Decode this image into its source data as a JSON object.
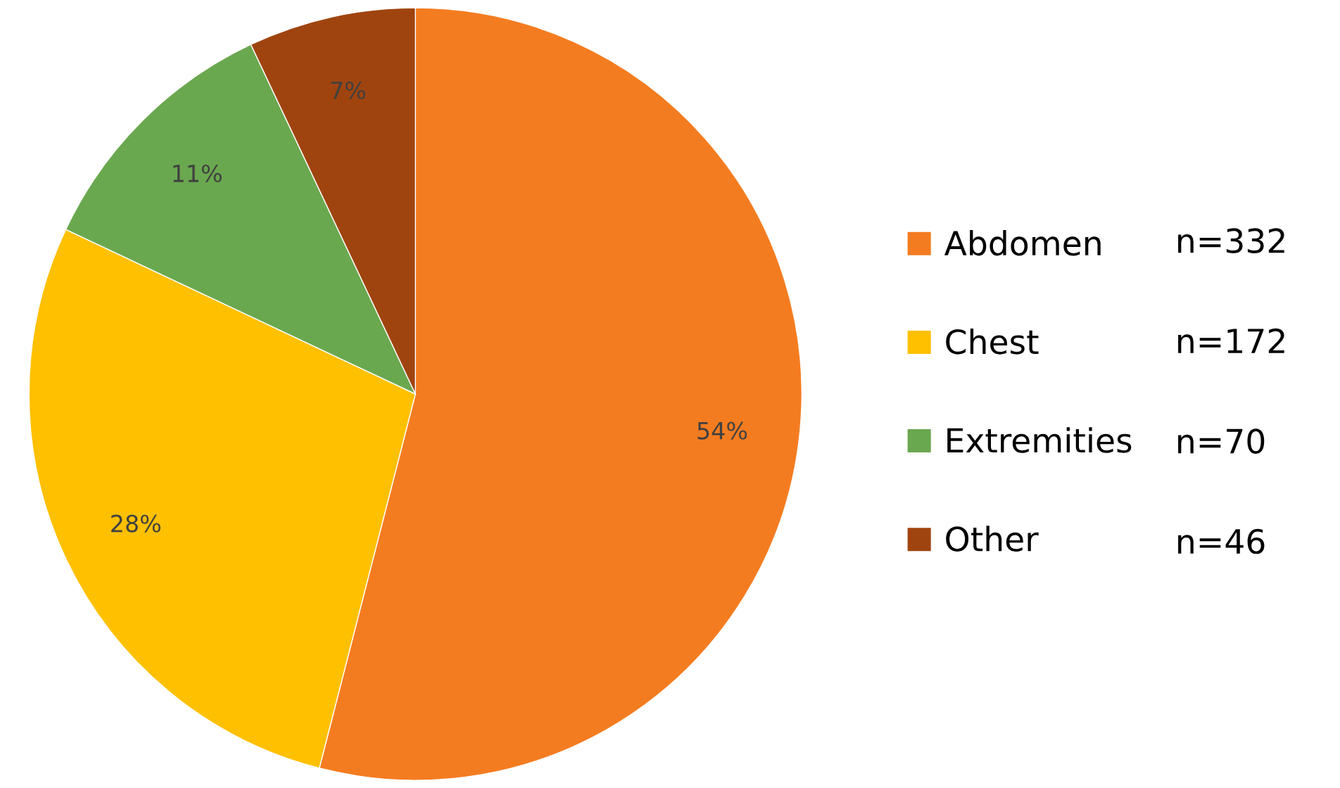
{
  "chart_data": {
    "type": "pie",
    "categories": [
      "Abdomen",
      "Chest",
      "Extremities",
      "Other"
    ],
    "values": [
      54,
      28,
      11,
      7
    ],
    "value_labels": [
      "54%",
      "28%",
      "11%",
      "7%"
    ],
    "colors": [
      "#f47c20",
      "#ffc000",
      "#6aa84f",
      "#a0440f"
    ],
    "annotations": [
      "n=332",
      "n=172",
      "n=70",
      "n=46"
    ],
    "legend": "right"
  }
}
